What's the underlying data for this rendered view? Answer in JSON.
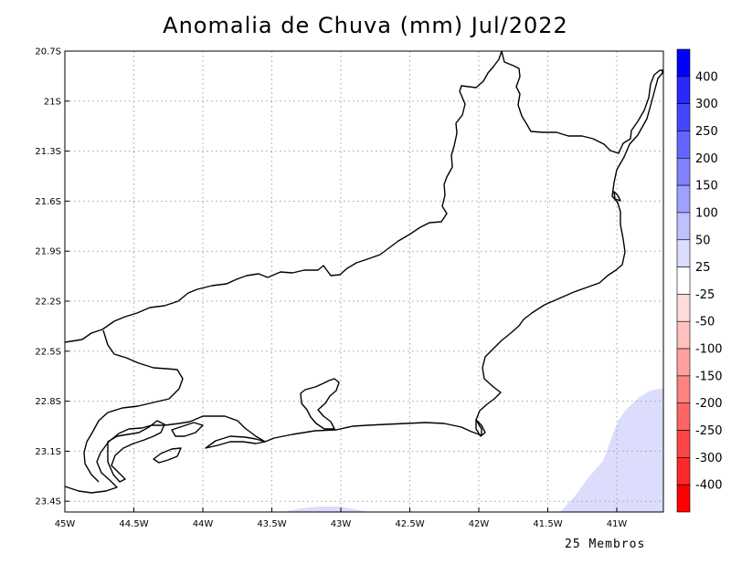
{
  "title": "Anomalia de Chuva (mm) Jul/2022",
  "footnote": "25 Membros",
  "map": {
    "lat_labels": [
      "20.7S",
      "21S",
      "21.3S",
      "21.6S",
      "21.9S",
      "22.2S",
      "22.5S",
      "22.8S",
      "23.1S",
      "23.4S"
    ],
    "lon_labels": [
      "45W",
      "44.5W",
      "44W",
      "43.5W",
      "43W",
      "42.5W",
      "42W",
      "41.5W",
      "41W"
    ],
    "region_colors": {
      "coast_line": "#000000",
      "grid": "#a0a0a0",
      "positive_anomaly_fill": "#dcdcfc"
    }
  },
  "colorbar": {
    "labels": [
      "400",
      "300",
      "250",
      "200",
      "150",
      "100",
      "50",
      "25",
      "-25",
      "-50",
      "-100",
      "-150",
      "-200",
      "-250",
      "-300",
      "-400"
    ],
    "colors": [
      "#0000ff",
      "#2828ff",
      "#4646ff",
      "#6464ff",
      "#8282ff",
      "#a0a0ff",
      "#c0c0ff",
      "#dcdcfc",
      "#ffffff",
      "#ffdcdc",
      "#ffc0c0",
      "#ffa0a0",
      "#ff8282",
      "#ff6464",
      "#ff4646",
      "#ff2828",
      "#ff0000"
    ]
  }
}
